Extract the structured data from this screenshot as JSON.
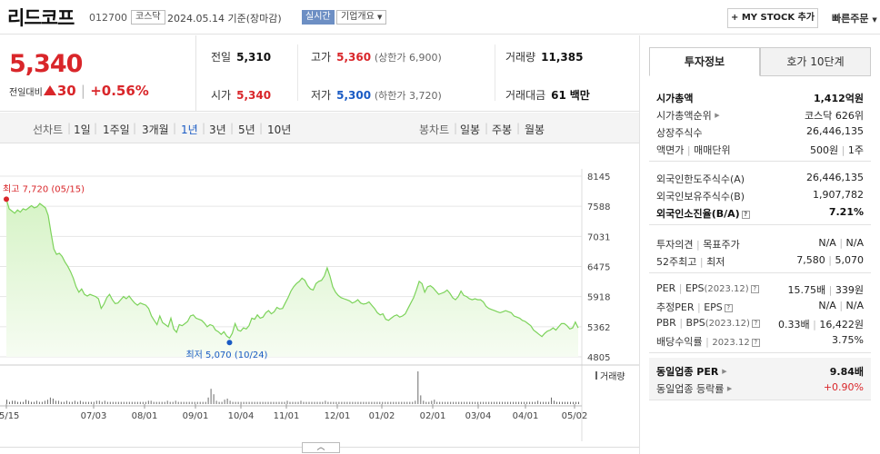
{
  "header": {
    "stock_name": "리드코프",
    "stock_code": "012700",
    "market": "코스닥",
    "date": "2024.05.14",
    "date_suffix": "기준(장마감)",
    "realtime": "실시간",
    "company_info": "기업개요",
    "my_stock": "+ MY STOCK 추가",
    "fast_order": "빠른주문"
  },
  "price": {
    "current": "5,340",
    "change_label": "전일대비",
    "change": "30",
    "change_pct": "+0.56%"
  },
  "quote": {
    "prev_label": "전일",
    "prev": "5,310",
    "high_label": "고가",
    "high": "5,360",
    "upper_limit": "(상한가 6,900)",
    "volume_label": "거래량",
    "volume": "11,385",
    "open_label": "시가",
    "open": "5,340",
    "low_label": "저가",
    "low": "5,300",
    "lower_limit": "(하한가 3,720)",
    "amount_label": "거래대금",
    "amount": "61",
    "amount_unit": "백만"
  },
  "period_tabs": {
    "line_label": "선차트",
    "items": [
      "1일",
      "1주일",
      "3개월",
      "1년",
      "3년",
      "5년",
      "10년"
    ],
    "selected": "1년",
    "candle_label": "봉차트",
    "candle_items": [
      "일봉",
      "주봉",
      "월봉"
    ]
  },
  "chart_data": {
    "type": "area",
    "y_ticks": [
      8145,
      7588,
      7031,
      6475,
      5918,
      5362,
      4805
    ],
    "ylim": [
      4805,
      8145
    ],
    "x_ticks": [
      "05/15",
      "07/03",
      "08/01",
      "09/01",
      "10/04",
      "11/01",
      "12/01",
      "01/02",
      "02/01",
      "03/04",
      "04/01",
      "05/02"
    ],
    "high_label": "최고 7,720 (05/15)",
    "high_value": 7720,
    "low_label": "최저 5,070 (10/24)",
    "low_value": 5070,
    "volume_legend": "거래량",
    "series": [
      {
        "values": [
          7720,
          7540,
          7500,
          7460,
          7520,
          7480,
          7540,
          7520,
          7560,
          7600,
          7560,
          7580,
          7640,
          7600,
          7560,
          7420,
          7100,
          6800,
          6700,
          6720,
          6660,
          6560,
          6480,
          6380,
          6260,
          6100,
          6000,
          6060,
          5960,
          5930,
          5960,
          5940,
          5920,
          5880,
          5700,
          5780,
          5900,
          5960,
          5860,
          5790,
          5800,
          5860,
          5920,
          5880,
          5930,
          5860,
          5800,
          5760,
          5800,
          5780,
          5760,
          5700,
          5560,
          5480,
          5400,
          5560,
          5440,
          5400,
          5360,
          5520,
          5320,
          5260,
          5400,
          5380,
          5420,
          5460,
          5560,
          5580,
          5520,
          5500,
          5480,
          5430,
          5360,
          5400,
          5380,
          5300,
          5270,
          5220,
          5270,
          5190,
          5150,
          5240,
          5420,
          5300,
          5280,
          5340,
          5320,
          5380,
          5520,
          5500,
          5580,
          5520,
          5540,
          5620,
          5660,
          5600,
          5640,
          5720,
          5690,
          5700,
          5800,
          5900,
          6020,
          6100,
          6160,
          6200,
          6260,
          6220,
          6120,
          6060,
          6040,
          6160,
          6200,
          6220,
          6300,
          6450,
          6300,
          6100,
          6000,
          5940,
          5900,
          5880,
          5860,
          5840,
          5800,
          5820,
          5860,
          5800,
          5780,
          5790,
          5820,
          5760,
          5700,
          5620,
          5580,
          5600,
          5500,
          5480,
          5520,
          5560,
          5580,
          5540,
          5560,
          5600,
          5700,
          5800,
          5900,
          6040,
          6200,
          6160,
          6000,
          6100,
          6120,
          6080,
          6020,
          5960,
          5980,
          6000,
          6040,
          5980,
          5900,
          5860,
          5920,
          6020,
          5940,
          5920,
          5880,
          5860,
          5880,
          5860,
          5860,
          5820,
          5740,
          5700,
          5680,
          5660,
          5640,
          5620,
          5640,
          5660,
          5640,
          5620,
          5560,
          5540,
          5520,
          5480,
          5460,
          5420,
          5380,
          5300,
          5260,
          5220,
          5180,
          5240,
          5280,
          5300,
          5340,
          5300,
          5360,
          5420,
          5420,
          5380,
          5320,
          5340,
          5450,
          5340
        ]
      }
    ],
    "volume_values": [
      4,
      2,
      3,
      3,
      2,
      2,
      2,
      4,
      3,
      2,
      2,
      3,
      2,
      2,
      3,
      4,
      6,
      5,
      3,
      3,
      2,
      2,
      3,
      2,
      2,
      3,
      2,
      3,
      2,
      2,
      2,
      2,
      2,
      3,
      3,
      2,
      3,
      2,
      2,
      2,
      2,
      2,
      2,
      2,
      2,
      2,
      2,
      2,
      2,
      2,
      2,
      2,
      3,
      3,
      2,
      2,
      2,
      2,
      2,
      3,
      2,
      2,
      3,
      2,
      2,
      2,
      2,
      2,
      2,
      2,
      2,
      2,
      2,
      2,
      6,
      14,
      9,
      3,
      2,
      2,
      4,
      5,
      3,
      2,
      2,
      2,
      2,
      2,
      2,
      2,
      2,
      2,
      2,
      2,
      2,
      2,
      2,
      2,
      2,
      2,
      2,
      2,
      2,
      3,
      2,
      2,
      2,
      2,
      3,
      2,
      2,
      2,
      2,
      2,
      2,
      2,
      2,
      3,
      2,
      2,
      2,
      2,
      2,
      2,
      2,
      2,
      2,
      2,
      2,
      2,
      2,
      2,
      2,
      2,
      2,
      2,
      2,
      2,
      2,
      2,
      2,
      2,
      2,
      2,
      2,
      2,
      2,
      2,
      2,
      2,
      3,
      30,
      8,
      3,
      2,
      2,
      3,
      4,
      2,
      2,
      2,
      2,
      2,
      2,
      2,
      2,
      2,
      2,
      2,
      2,
      2,
      2,
      2,
      2,
      2,
      2,
      2,
      2,
      2,
      2,
      2,
      2,
      2,
      2,
      2,
      2,
      2,
      2,
      2,
      2,
      2,
      2,
      2,
      2,
      2,
      3,
      2,
      2,
      2,
      2,
      6,
      3,
      2,
      2,
      2,
      2,
      2,
      2,
      2,
      2,
      2
    ],
    "colors": {
      "line": "#7cd35a",
      "fill_top": "#d6f3c6",
      "fill_bottom": "#f6fcf2",
      "high": "#d9262a",
      "low": "#1a5bc4",
      "volume": "#6b6b6b"
    }
  },
  "collapse_button": "^",
  "right_panel": {
    "tabs": [
      "투자정보",
      "호가 10단계"
    ],
    "sections": [
      {
        "rows": [
          {
            "k": "시가총액",
            "v": "1,412억원",
            "bold": true
          },
          {
            "k": "시가총액순위",
            "v": "코스닥 626위",
            "arrow": true
          },
          {
            "k": "상장주식수",
            "v": "26,446,135"
          },
          {
            "k": "액면가",
            "k2": "매매단위",
            "v": "500원",
            "v2": "1주"
          }
        ]
      },
      {
        "rows": [
          {
            "k": "외국인한도주식수(A)",
            "v": "26,446,135"
          },
          {
            "k": "외국인보유주식수(B)",
            "v": "1,907,782"
          },
          {
            "k": "외국인소진율(B/A)",
            "v": "7.21%",
            "bold": true,
            "help": true
          }
        ]
      },
      {
        "rows": [
          {
            "k": "투자의견",
            "k2": "목표주가",
            "v": "N/A",
            "v2": "N/A"
          },
          {
            "k": "52주최고",
            "k2": "최저",
            "v": "7,580",
            "v2": "5,070"
          }
        ]
      },
      {
        "rows": [
          {
            "k": "PER",
            "k2": "EPS",
            "k2sub": "(2023.12)",
            "v": "15.75배",
            "v2": "339원",
            "help": true
          },
          {
            "k": "추정PER",
            "k2": "EPS",
            "v": "N/A",
            "v2": "N/A",
            "help": true
          },
          {
            "k": "PBR",
            "k2": "BPS",
            "k2sub": "(2023.12)",
            "v": "0.33배",
            "v2": "16,422원",
            "help": true
          },
          {
            "k": "배당수익률",
            "k2sub": "2023.12",
            "v": "3.75%",
            "help": true
          }
        ]
      },
      {
        "shaded": true,
        "rows": [
          {
            "k": "동일업종 PER",
            "v": "9.84배",
            "bold": true,
            "arrow": true
          },
          {
            "k": "동일업종 등락률",
            "v": "+0.90%",
            "red": true,
            "arrow": true
          }
        ]
      }
    ]
  }
}
